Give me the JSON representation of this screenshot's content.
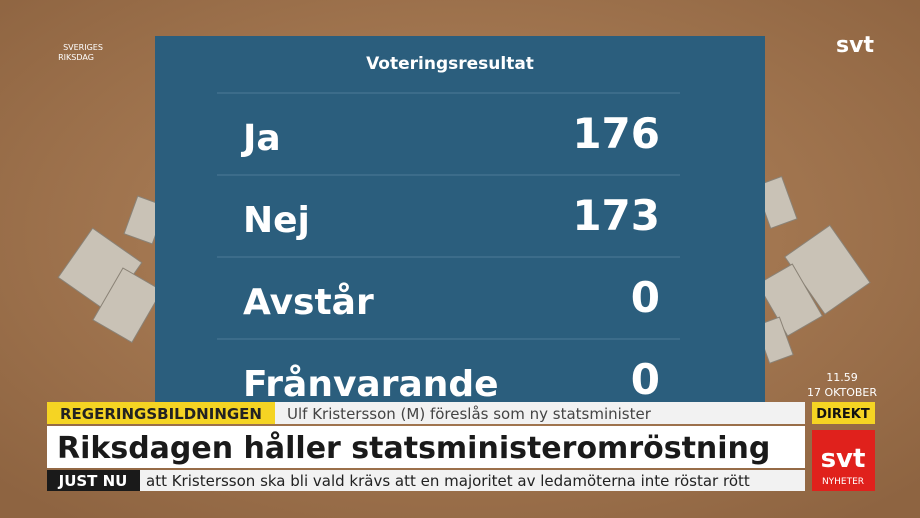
{
  "logo": {
    "line1": "SVERIGES",
    "line2": "RIKSDAG"
  },
  "channel_logo": "svt",
  "panel": {
    "title": "Voteringsresultat",
    "rows": [
      {
        "label": "Ja",
        "value": 176
      },
      {
        "label": "Nej",
        "value": 173
      },
      {
        "label": "Avstår",
        "value": 0
      },
      {
        "label": "Frånvarande",
        "value": 0
      }
    ]
  },
  "clock": {
    "time": "11.59",
    "date": "17 OKTOBER"
  },
  "lower_third": {
    "topic": "REGERINGSBILDNINGEN",
    "subtitle": "Ulf Kristersson (M) föreslås som ny statsminister",
    "headline": "Riksdagen håller statsministeromröstning",
    "ticker_label": "JUST NU",
    "ticker_text": "att Kristersson ska bli vald krävs att en majoritet av ledamöterna inte röstar rött"
  },
  "badge": {
    "live": "DIREKT",
    "brand": "svt",
    "brand_sub": "NYHETER"
  }
}
